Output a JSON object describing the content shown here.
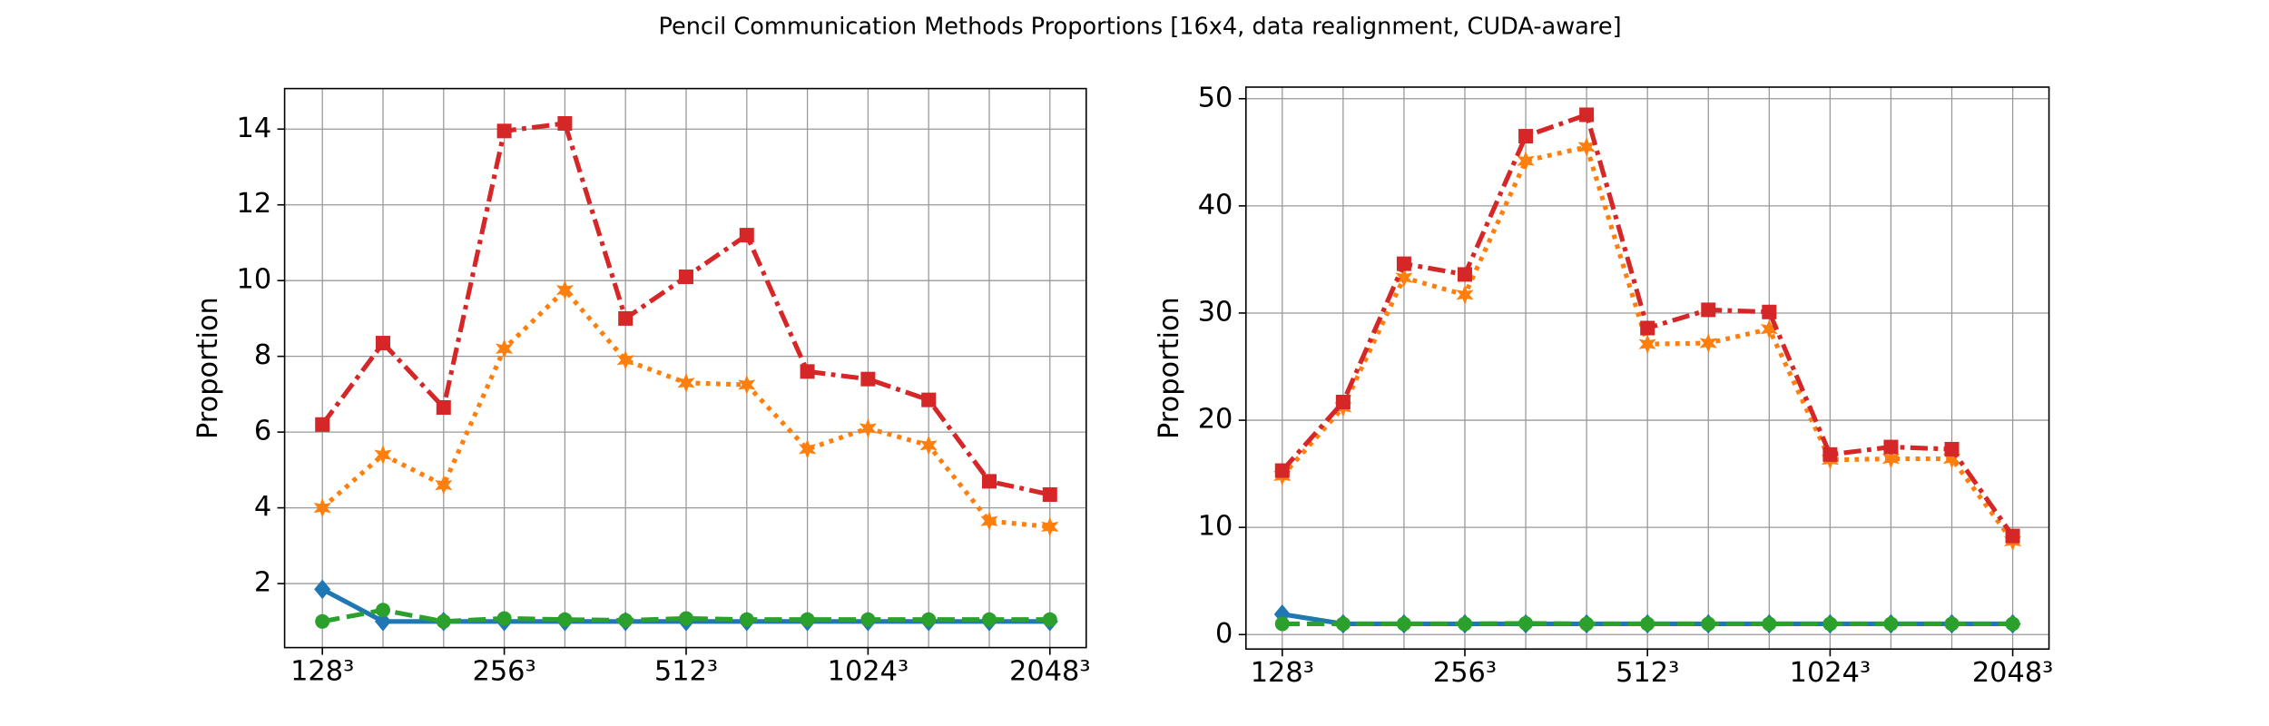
{
  "title": "Pencil Communication Methods Proportions [16x4, data realignment, CUDA-aware]",
  "chart_data": [
    {
      "type": "line",
      "ylabel": "Proportion",
      "categories": [
        "128³",
        null,
        null,
        "256³",
        null,
        null,
        "512³",
        null,
        null,
        "1024³",
        null,
        null,
        "2048³"
      ],
      "ylim": [
        0.31,
        15.07
      ],
      "yticks": [
        2,
        4,
        6,
        8,
        10,
        12,
        14
      ],
      "grid": true,
      "series": [
        {
          "color": "#1f77b4",
          "dash": "solid",
          "marker": "diamond",
          "values": [
            1.85,
            1.0,
            1.0,
            1.0,
            1.0,
            1.0,
            1.0,
            1.0,
            1.0,
            1.0,
            1.0,
            1.0,
            1.0
          ]
        },
        {
          "color": "#2ca02c",
          "dash": "dashed",
          "marker": "circle",
          "values": [
            1.0,
            1.3,
            1.0,
            1.08,
            1.05,
            1.03,
            1.08,
            1.05,
            1.05,
            1.05,
            1.05,
            1.05,
            1.05
          ]
        },
        {
          "color": "#ff7f0e",
          "dash": "dotted",
          "marker": "star",
          "values": [
            4.0,
            5.4,
            4.6,
            8.2,
            9.75,
            7.9,
            7.3,
            7.25,
            5.55,
            6.1,
            5.65,
            3.65,
            3.5
          ]
        },
        {
          "color": "#d62728",
          "dash": "dashdot",
          "marker": "square",
          "values": [
            6.2,
            8.35,
            6.65,
            13.95,
            14.15,
            9.0,
            10.1,
            11.2,
            7.6,
            7.4,
            6.85,
            4.7,
            4.35
          ]
        }
      ]
    },
    {
      "type": "line",
      "ylabel": "Proportion",
      "categories": [
        "128³",
        null,
        null,
        "256³",
        null,
        null,
        "512³",
        null,
        null,
        "1024³",
        null,
        null,
        "2048³"
      ],
      "ylim": [
        -1.35,
        51.08
      ],
      "yticks": [
        0,
        10,
        20,
        30,
        40,
        50
      ],
      "grid": true,
      "series": [
        {
          "color": "#1f77b4",
          "dash": "solid",
          "marker": "diamond",
          "values": [
            1.9,
            1.0,
            1.0,
            1.0,
            1.0,
            1.0,
            1.0,
            1.0,
            1.0,
            1.0,
            1.0,
            1.0,
            1.0
          ]
        },
        {
          "color": "#2ca02c",
          "dash": "dashed",
          "marker": "circle",
          "values": [
            1.0,
            1.0,
            1.0,
            1.0,
            1.05,
            1.0,
            1.0,
            1.0,
            1.0,
            1.0,
            1.0,
            1.0,
            1.0
          ]
        },
        {
          "color": "#ff7f0e",
          "dash": "dotted",
          "marker": "star",
          "values": [
            14.8,
            21.2,
            33.3,
            31.7,
            44.2,
            45.5,
            27.1,
            27.2,
            28.5,
            16.3,
            16.4,
            16.4,
            8.7
          ]
        },
        {
          "color": "#d62728",
          "dash": "dashdot",
          "marker": "square",
          "values": [
            15.3,
            21.7,
            34.6,
            33.6,
            46.5,
            48.5,
            28.6,
            30.3,
            30.1,
            16.8,
            17.5,
            17.3,
            9.2
          ]
        }
      ]
    }
  ]
}
